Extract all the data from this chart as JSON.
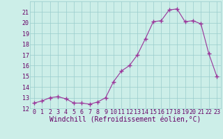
{
  "x": [
    0,
    1,
    2,
    3,
    4,
    5,
    6,
    7,
    8,
    9,
    10,
    11,
    12,
    13,
    14,
    15,
    16,
    17,
    18,
    19,
    20,
    21,
    22,
    23
  ],
  "y": [
    12.5,
    12.7,
    13.0,
    13.1,
    12.9,
    12.5,
    12.5,
    12.4,
    12.6,
    13.0,
    14.5,
    15.5,
    16.0,
    17.0,
    18.5,
    20.1,
    20.2,
    21.2,
    21.3,
    20.1,
    20.2,
    19.9,
    17.1,
    15.0
  ],
  "line_color": "#993399",
  "marker": "+",
  "marker_size": 4,
  "marker_lw": 1.0,
  "bg_color": "#cceee8",
  "grid_color": "#99cccc",
  "xlabel": "Windchill (Refroidissement éolien,°C)",
  "ylim": [
    12,
    22
  ],
  "xlim": [
    -0.5,
    23.5
  ],
  "yticks": [
    12,
    13,
    14,
    15,
    16,
    17,
    18,
    19,
    20,
    21
  ],
  "xticks": [
    0,
    1,
    2,
    3,
    4,
    5,
    6,
    7,
    8,
    9,
    10,
    11,
    12,
    13,
    14,
    15,
    16,
    17,
    18,
    19,
    20,
    21,
    22,
    23
  ],
  "tick_label_fontsize": 6,
  "xlabel_fontsize": 7,
  "tick_color": "#660066",
  "label_color": "#660066",
  "line_width": 0.8
}
